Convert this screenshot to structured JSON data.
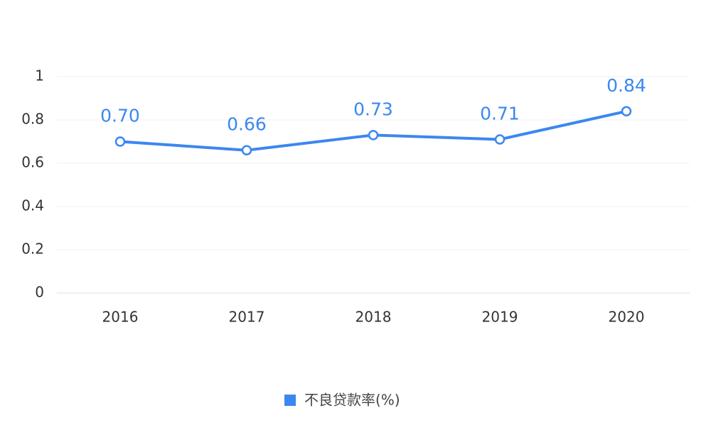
{
  "chart_data": {
    "type": "line",
    "categories": [
      "2016",
      "2017",
      "2018",
      "2019",
      "2020"
    ],
    "series": [
      {
        "name": "不良贷款率(%)",
        "color": "#3b87f0",
        "values": [
          0.7,
          0.66,
          0.73,
          0.71,
          0.84
        ],
        "value_labels": [
          "0.70",
          "0.66",
          "0.73",
          "0.71",
          "0.84"
        ]
      }
    ],
    "ylim": [
      0,
      1
    ],
    "yticks": [
      0,
      0.2,
      0.4,
      0.6,
      0.8,
      1
    ],
    "grid": true,
    "legend": "bottom"
  }
}
